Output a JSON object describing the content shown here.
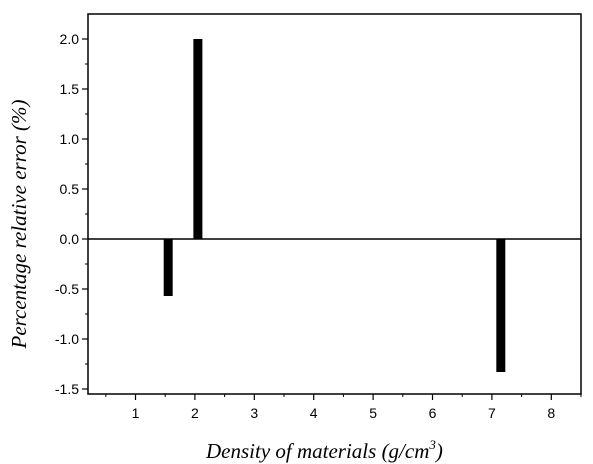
{
  "chart_data": {
    "type": "bar",
    "x": [
      1.55,
      2.05,
      7.15
    ],
    "values": [
      -0.57,
      2.0,
      -1.33
    ],
    "xlabel": "Density of materials (g/cm",
    "xlabel_superscript": "3",
    "xlabel_close": ")",
    "ylabel": "Percentage relative error (%)",
    "xlim": [
      0.2,
      8.5
    ],
    "ylim": [
      -1.55,
      2.25
    ],
    "xticks": [
      1,
      2,
      3,
      4,
      5,
      6,
      7,
      8
    ],
    "xtick_labels": [
      "1",
      "2",
      "3",
      "4",
      "5",
      "6",
      "7",
      "8"
    ],
    "yticks": [
      2.0,
      1.5,
      1.0,
      0.5,
      0.0,
      -0.5,
      -1.0,
      -1.5
    ],
    "ytick_labels": [
      "2.0",
      "1.5",
      "1.0",
      "0.5",
      "0.0",
      "-0.5",
      "-1.0",
      "-1.5"
    ],
    "baseline": 0.0,
    "grid": false,
    "legend": "none",
    "bar_color": "#000000"
  }
}
